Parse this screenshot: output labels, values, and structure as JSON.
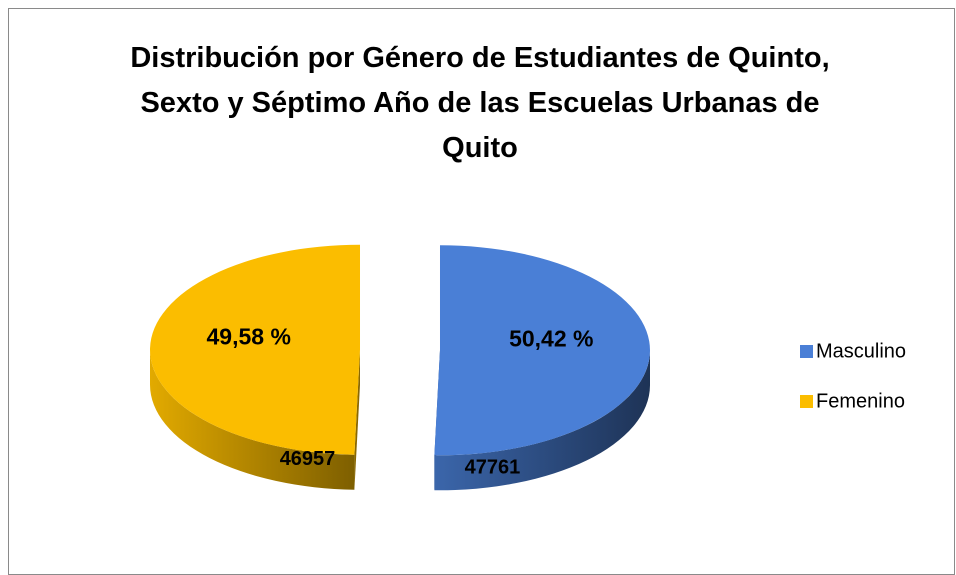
{
  "chart_data": {
    "type": "pie",
    "title": "Distribución por Género de Estudiantes de Quinto, Sexto y Séptimo Año de las Escuelas Urbanas de Quito",
    "categories": [
      "Masculino",
      "Femenino"
    ],
    "values": [
      47761,
      46957
    ],
    "percentages": [
      50.42,
      49.58
    ],
    "percentage_labels": [
      "50,42 %",
      "49,58 %"
    ],
    "colors": [
      "#4a7fd6",
      "#fbbd00"
    ],
    "legend": "right"
  }
}
